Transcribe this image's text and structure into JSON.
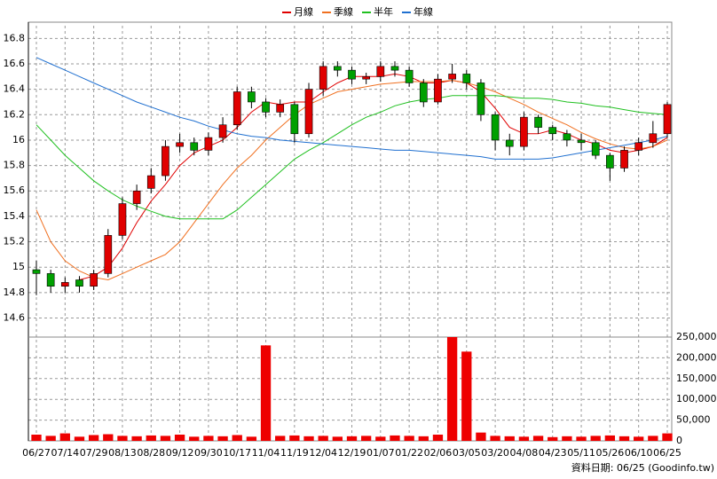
{
  "chart_data": {
    "type": "candlestick",
    "grid": true,
    "legend_position": "top",
    "up_color": "#e00000",
    "down_color": "#00a000",
    "categories": [
      "06/27",
      null,
      "07/14",
      null,
      "07/29",
      null,
      "08/13",
      null,
      "08/28",
      null,
      "09/12",
      null,
      "09/30",
      null,
      "10/17",
      null,
      "11/04",
      null,
      "11/19",
      null,
      "12/04",
      null,
      "12/19",
      null,
      "01/07",
      null,
      "01/22",
      null,
      "02/06",
      null,
      "03/05",
      null,
      "03/20",
      null,
      "04/08",
      null,
      "04/23",
      null,
      "05/11",
      null,
      "05/26",
      null,
      "06/10",
      null,
      "06/25"
    ],
    "open": [
      14.98,
      14.95,
      14.85,
      14.9,
      14.85,
      14.95,
      15.25,
      15.5,
      15.62,
      15.72,
      15.95,
      15.98,
      15.92,
      16.02,
      16.12,
      16.38,
      16.3,
      16.22,
      16.28,
      16.05,
      16.4,
      16.58,
      16.55,
      16.48,
      16.5,
      16.58,
      16.55,
      16.45,
      16.3,
      16.48,
      16.52,
      16.45,
      16.2,
      16.0,
      15.95,
      16.18,
      16.1,
      16.05,
      16.0,
      15.98,
      15.88,
      15.78,
      15.92,
      15.98,
      16.05
    ],
    "high": [
      15.05,
      14.98,
      14.92,
      14.93,
      14.98,
      15.3,
      15.55,
      15.65,
      15.78,
      16.0,
      16.05,
      16.02,
      16.06,
      16.18,
      16.42,
      16.42,
      16.33,
      16.32,
      16.3,
      16.45,
      16.62,
      16.62,
      16.58,
      16.53,
      16.62,
      16.62,
      16.58,
      16.48,
      16.52,
      16.6,
      16.55,
      16.48,
      16.22,
      16.05,
      16.22,
      16.2,
      16.12,
      16.08,
      16.05,
      16.0,
      15.9,
      15.95,
      16.02,
      16.15,
      16.3
    ],
    "low": [
      14.78,
      14.8,
      14.8,
      14.8,
      14.82,
      14.92,
      15.22,
      15.45,
      15.58,
      15.68,
      15.9,
      15.88,
      15.88,
      15.98,
      16.08,
      16.25,
      16.18,
      16.18,
      15.98,
      16.02,
      16.35,
      16.5,
      16.44,
      16.44,
      16.46,
      16.5,
      16.42,
      16.26,
      16.28,
      16.45,
      16.4,
      16.15,
      15.92,
      15.88,
      15.92,
      16.05,
      16.0,
      15.95,
      15.92,
      15.85,
      15.68,
      15.75,
      15.88,
      15.94,
      16.02
    ],
    "close": [
      14.95,
      14.85,
      14.88,
      14.85,
      14.95,
      15.25,
      15.5,
      15.6,
      15.72,
      15.95,
      15.98,
      15.92,
      16.02,
      16.12,
      16.38,
      16.3,
      16.22,
      16.28,
      16.05,
      16.4,
      16.58,
      16.55,
      16.48,
      16.5,
      16.58,
      16.55,
      16.45,
      16.3,
      16.48,
      16.52,
      16.45,
      16.2,
      16.0,
      15.95,
      16.18,
      16.1,
      16.05,
      16.0,
      15.98,
      15.88,
      15.78,
      15.92,
      15.98,
      16.05,
      16.28
    ],
    "ylim": [
      14.45,
      16.9
    ],
    "yticks": [
      14.6,
      14.8,
      15,
      15.2,
      15.4,
      15.6,
      15.8,
      16,
      16.2,
      16.4,
      16.6,
      16.8
    ],
    "series": [
      {
        "name": "月線",
        "color": "#e00000",
        "values": [
          null,
          null,
          null,
          14.9,
          14.93,
          15.0,
          15.15,
          15.35,
          15.52,
          15.65,
          15.8,
          15.9,
          15.95,
          16.0,
          16.1,
          16.22,
          16.3,
          16.28,
          16.3,
          16.3,
          16.38,
          16.45,
          16.5,
          16.5,
          16.5,
          16.52,
          16.5,
          16.45,
          16.45,
          16.47,
          16.45,
          16.38,
          16.25,
          16.1,
          16.05,
          16.05,
          16.08,
          16.05,
          16.0,
          15.97,
          15.92,
          15.9,
          15.92,
          15.95,
          16.02
        ]
      },
      {
        "name": "季線",
        "color": "#f07020",
        "values": [
          15.45,
          15.2,
          15.05,
          14.97,
          14.92,
          14.9,
          14.95,
          15.0,
          15.05,
          15.1,
          15.2,
          15.35,
          15.5,
          15.65,
          15.78,
          15.88,
          16.0,
          16.1,
          16.2,
          16.28,
          16.33,
          16.38,
          16.4,
          16.42,
          16.44,
          16.45,
          16.46,
          16.46,
          16.46,
          16.47,
          16.45,
          16.42,
          16.38,
          16.33,
          16.28,
          16.22,
          16.17,
          16.12,
          16.06,
          16.01,
          15.97,
          15.94,
          15.93,
          15.95,
          16.0
        ]
      },
      {
        "name": "半年",
        "color": "#20c020",
        "values": [
          16.12,
          16.0,
          15.88,
          15.78,
          15.68,
          15.6,
          15.53,
          15.48,
          15.44,
          15.4,
          15.38,
          15.38,
          15.38,
          15.38,
          15.45,
          15.55,
          15.65,
          15.75,
          15.85,
          15.92,
          15.98,
          16.05,
          16.12,
          16.18,
          16.22,
          16.27,
          16.3,
          16.32,
          16.33,
          16.35,
          16.35,
          16.35,
          16.35,
          16.34,
          16.33,
          16.33,
          16.32,
          16.3,
          16.29,
          16.27,
          16.26,
          16.24,
          16.22,
          16.21,
          16.2
        ]
      },
      {
        "name": "年線",
        "color": "#2070d0",
        "values": [
          16.65,
          16.6,
          16.55,
          16.5,
          16.45,
          16.4,
          16.35,
          16.3,
          16.26,
          16.22,
          16.18,
          16.15,
          16.11,
          16.08,
          16.05,
          16.03,
          16.02,
          16.0,
          15.99,
          15.98,
          15.97,
          15.96,
          15.95,
          15.94,
          15.93,
          15.92,
          15.92,
          15.91,
          15.9,
          15.89,
          15.88,
          15.87,
          15.85,
          15.85,
          15.85,
          15.85,
          15.86,
          15.88,
          15.9,
          15.92,
          15.94,
          15.96,
          15.98,
          16.0,
          16.03
        ]
      }
    ],
    "volume": {
      "color": "#ee0000",
      "values": [
        15000,
        12000,
        18000,
        10000,
        14000,
        16000,
        12000,
        11000,
        13000,
        12000,
        15000,
        10000,
        12000,
        11000,
        14000,
        10000,
        230000,
        12000,
        13000,
        11000,
        12000,
        10000,
        11000,
        12000,
        10000,
        13000,
        12000,
        11000,
        15000,
        250000,
        215000,
        20000,
        12000,
        11000,
        10000,
        12000,
        9000,
        11000,
        10000,
        12000,
        13000,
        11000,
        10000,
        12000,
        18000
      ],
      "ylim": [
        0,
        250000
      ],
      "yticks": [
        0,
        {
          "value": 50000,
          "label": "50,000"
        },
        {
          "value": 100000,
          "label": "100,000"
        },
        {
          "value": 150000,
          "label": "150,000"
        },
        {
          "value": 200000,
          "label": "200,000"
        },
        {
          "value": 250000,
          "label": "250,000"
        }
      ]
    },
    "footer": "資料日期: 06/25 (Goodinfo.tw)"
  }
}
